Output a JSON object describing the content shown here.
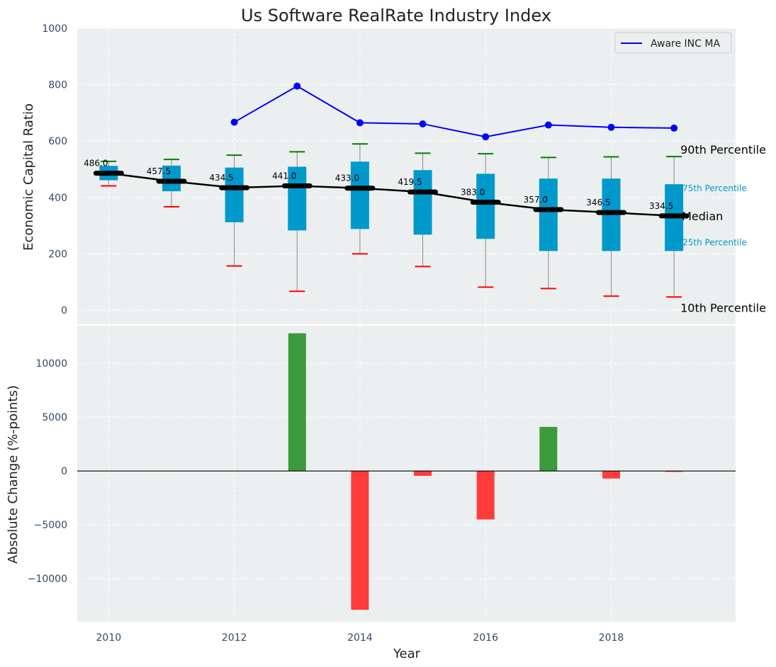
{
  "chart_data": [
    {
      "type": "box",
      "title": "Us Software RealRate Industry Index",
      "xlabel": "",
      "ylabel": "Economic Capital Ratio",
      "ylim": [
        -50,
        1000
      ],
      "yticks": [
        0,
        200,
        400,
        600,
        800,
        1000
      ],
      "grid": true,
      "legend": {
        "entries": [
          "Aware INC MA"
        ],
        "position": "top-right"
      },
      "years": [
        2010,
        2011,
        2012,
        2013,
        2014,
        2015,
        2016,
        2017,
        2018,
        2019
      ],
      "p10": [
        441,
        367,
        157,
        67,
        200,
        155,
        82,
        77,
        50,
        47
      ],
      "p25": [
        461,
        422,
        312,
        283,
        288,
        268,
        253,
        210,
        210,
        210
      ],
      "median": [
        486.0,
        457.5,
        434.5,
        441.0,
        433.0,
        419.5,
        383.0,
        357.0,
        346.5,
        334.5
      ],
      "median_labels": [
        "486.0",
        "457.5",
        "434.5",
        "441.0",
        "433.0",
        "419.5",
        "383.0",
        "357.0",
        "346.5",
        "334.5"
      ],
      "p75": [
        512,
        513,
        506,
        509,
        527,
        497,
        484,
        467,
        467,
        447
      ],
      "p90": [
        528,
        535,
        550,
        562,
        590,
        557,
        555,
        542,
        544,
        545
      ],
      "company_series": {
        "name": "Aware INC MA",
        "years": [
          2012,
          2013,
          2014,
          2015,
          2016,
          2017,
          2018,
          2019
        ],
        "values": [
          667,
          795,
          665,
          661,
          615,
          657,
          649,
          646
        ]
      },
      "annotations": {
        "p90": "90th Percentile",
        "p75": "75th Percentile",
        "median": "Median",
        "p25": "25th Percentile",
        "p10": "10th Percentile"
      },
      "colors": {
        "box": "#0099cc",
        "median": "#000000",
        "p90_cap": "#008000",
        "p10_cap": "#ff0000",
        "company": "#0000ff",
        "bg": "#eceff0"
      }
    },
    {
      "type": "bar",
      "title": "",
      "xlabel": "Year",
      "ylabel": "Absolute Change (%-points)",
      "ylim": [
        -14000,
        13500
      ],
      "yticks": [
        -10000,
        -5000,
        0,
        5000,
        10000
      ],
      "xticks": [
        2010,
        2012,
        2014,
        2016,
        2018
      ],
      "xlim": [
        2009.5,
        2019.98
      ],
      "grid": true,
      "categories": [
        2013,
        2014,
        2015,
        2016,
        2017,
        2018,
        2019
      ],
      "values": [
        12800,
        -12900,
        -450,
        -4500,
        4100,
        -700,
        -80
      ],
      "colors": {
        "positive": "#3b9a3b",
        "negative": "#ff3b3b"
      }
    }
  ]
}
